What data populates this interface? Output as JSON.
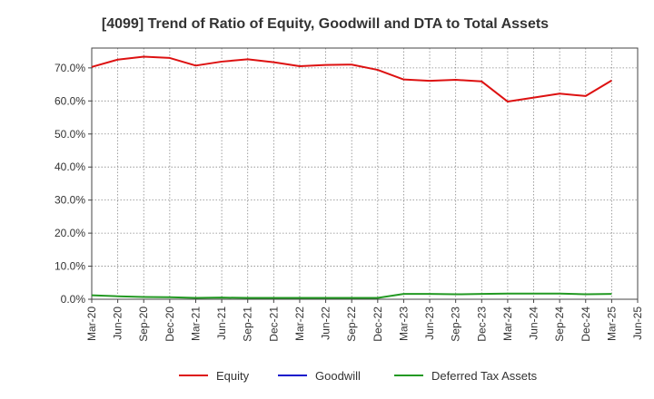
{
  "chart_data": {
    "type": "line",
    "title": "[4099]  Trend of Ratio of Equity, Goodwill and DTA to Total Assets",
    "xlabel": "",
    "ylabel": "",
    "ylim": [
      0,
      76
    ],
    "yticks": [
      0,
      10,
      20,
      30,
      40,
      50,
      60,
      70
    ],
    "ytick_labels": [
      "0.0%",
      "10.0%",
      "20.0%",
      "30.0%",
      "40.0%",
      "50.0%",
      "60.0%",
      "70.0%"
    ],
    "x_tick_labels": [
      "Mar-20",
      "Jun-20",
      "Sep-20",
      "Dec-20",
      "Mar-21",
      "Jun-21",
      "Sep-21",
      "Dec-21",
      "Mar-22",
      "Jun-22",
      "Sep-22",
      "Dec-22",
      "Mar-23",
      "Jun-23",
      "Sep-23",
      "Dec-23",
      "Mar-24",
      "Jun-24",
      "Sep-24",
      "Dec-24",
      "Mar-25",
      "Jun-25"
    ],
    "grid": true,
    "legend_position": "bottom",
    "series": [
      {
        "name": "Equity",
        "color": "#dd1111",
        "values": [
          70.3,
          72.5,
          73.4,
          73.0,
          70.7,
          71.9,
          72.6,
          71.7,
          70.5,
          70.9,
          71.0,
          69.4,
          66.5,
          66.1,
          66.4,
          65.9,
          59.8,
          61.0,
          62.2,
          61.5,
          66.2
        ]
      },
      {
        "name": "Goodwill",
        "color": "#1111cc",
        "values": []
      },
      {
        "name": "Deferred Tax Assets",
        "color": "#229922",
        "values": [
          1.2,
          0.9,
          0.7,
          0.6,
          0.4,
          0.5,
          0.4,
          0.4,
          0.4,
          0.4,
          0.4,
          0.4,
          1.6,
          1.6,
          1.5,
          1.6,
          1.7,
          1.7,
          1.7,
          1.5,
          1.6
        ]
      }
    ]
  }
}
